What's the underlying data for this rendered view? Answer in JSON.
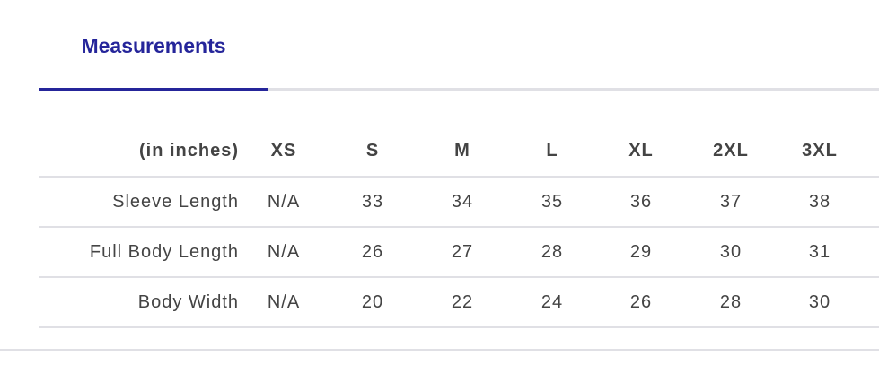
{
  "tab": {
    "label": "Measurements",
    "accent_color": "#25259a"
  },
  "table": {
    "unit_label": "(in inches)",
    "sizes": [
      "XS",
      "S",
      "M",
      "L",
      "XL",
      "2XL",
      "3XL"
    ],
    "rows": [
      {
        "label": "Sleeve Length",
        "values": [
          "N/A",
          "33",
          "34",
          "35",
          "36",
          "37",
          "38"
        ]
      },
      {
        "label": "Full Body Length",
        "values": [
          "N/A",
          "26",
          "27",
          "28",
          "29",
          "30",
          "31"
        ]
      },
      {
        "label": "Body Width",
        "values": [
          "N/A",
          "20",
          "22",
          "24",
          "26",
          "28",
          "30"
        ]
      }
    ]
  }
}
